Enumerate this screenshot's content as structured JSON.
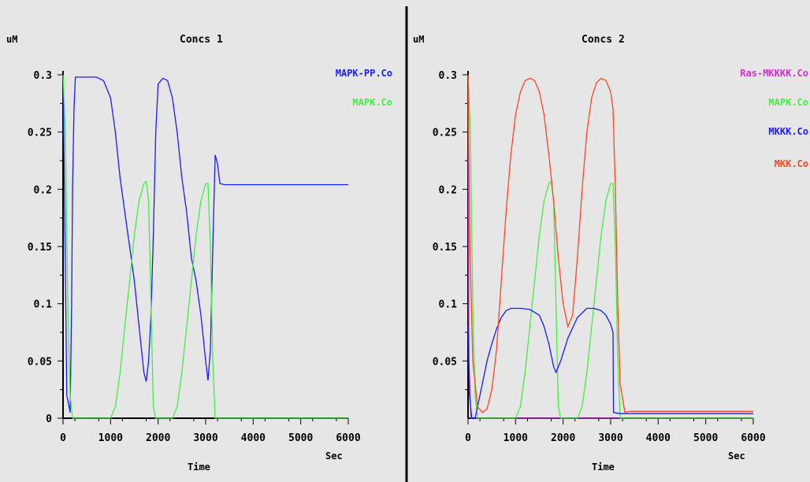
{
  "window": {
    "background": "#e6e6e6"
  },
  "chart_data": [
    {
      "type": "line",
      "title": "Concs 1",
      "ylabel": "uM",
      "xlabel": "Time",
      "xunit": "Sec",
      "xlim": [
        0,
        6000
      ],
      "ylim": [
        0,
        0.3
      ],
      "xticks": [
        "0",
        "1000",
        "2000",
        "3000",
        "4000",
        "5000",
        "6000"
      ],
      "yticks": [
        "0",
        "0.05",
        "0.1",
        "0.15",
        "0.2",
        "0.25",
        "0.3"
      ],
      "legend_placement": "top-right",
      "series": [
        {
          "name": "MAPK-PP.Co",
          "color": "#1a1aff",
          "points": [
            [
              0,
              0.3
            ],
            [
              30,
              0.2
            ],
            [
              80,
              0.02
            ],
            [
              150,
              0.005
            ],
            [
              180,
              0.1
            ],
            [
              200,
              0.2
            ],
            [
              230,
              0.27
            ],
            [
              260,
              0.298
            ],
            [
              400,
              0.298
            ],
            [
              700,
              0.298
            ],
            [
              850,
              0.295
            ],
            [
              1000,
              0.28
            ],
            [
              1100,
              0.25
            ],
            [
              1200,
              0.21
            ],
            [
              1300,
              0.18
            ],
            [
              1400,
              0.15
            ],
            [
              1500,
              0.12
            ],
            [
              1600,
              0.08
            ],
            [
              1700,
              0.04
            ],
            [
              1750,
              0.032
            ],
            [
              1800,
              0.05
            ],
            [
              1850,
              0.09
            ],
            [
              1900,
              0.16
            ],
            [
              1950,
              0.25
            ],
            [
              2000,
              0.292
            ],
            [
              2100,
              0.297
            ],
            [
              2200,
              0.295
            ],
            [
              2300,
              0.28
            ],
            [
              2400,
              0.25
            ],
            [
              2500,
              0.21
            ],
            [
              2600,
              0.18
            ],
            [
              2700,
              0.14
            ],
            [
              2800,
              0.12
            ],
            [
              2900,
              0.09
            ],
            [
              3000,
              0.05
            ],
            [
              3050,
              0.033
            ],
            [
              3100,
              0.06
            ],
            [
              3150,
              0.15
            ],
            [
              3200,
              0.23
            ],
            [
              3250,
              0.222
            ],
            [
              3300,
              0.205
            ],
            [
              3400,
              0.204
            ],
            [
              6000,
              0.204
            ]
          ]
        },
        {
          "name": "MAPK.Co",
          "color": "#44ee44",
          "points": [
            [
              0,
              0.3
            ],
            [
              50,
              0.25
            ],
            [
              100,
              0.1
            ],
            [
              150,
              0.02
            ],
            [
              200,
              0.0
            ],
            [
              1000,
              0.0
            ],
            [
              1100,
              0.01
            ],
            [
              1200,
              0.04
            ],
            [
              1300,
              0.08
            ],
            [
              1400,
              0.12
            ],
            [
              1500,
              0.16
            ],
            [
              1600,
              0.19
            ],
            [
              1700,
              0.205
            ],
            [
              1750,
              0.207
            ],
            [
              1800,
              0.19
            ],
            [
              1850,
              0.1
            ],
            [
              1900,
              0.01
            ],
            [
              1950,
              0.0
            ],
            [
              2300,
              0.0
            ],
            [
              2400,
              0.01
            ],
            [
              2500,
              0.04
            ],
            [
              2600,
              0.08
            ],
            [
              2700,
              0.12
            ],
            [
              2800,
              0.16
            ],
            [
              2900,
              0.19
            ],
            [
              3000,
              0.205
            ],
            [
              3050,
              0.205
            ],
            [
              3100,
              0.15
            ],
            [
              3150,
              0.05
            ],
            [
              3200,
              0.0
            ],
            [
              6000,
              0.0
            ]
          ]
        }
      ]
    },
    {
      "type": "line",
      "title": "Concs 2",
      "ylabel": "uM",
      "xlabel": "Time",
      "xunit": "Sec",
      "xlim": [
        0,
        6000
      ],
      "ylim": [
        0,
        0.3
      ],
      "xticks": [
        "0",
        "1000",
        "2000",
        "3000",
        "4000",
        "5000",
        "6000"
      ],
      "yticks": [
        "0.05",
        "0.1",
        "0.15",
        "0.2",
        "0.25",
        "0.3"
      ],
      "legend_placement": "top-right",
      "series": [
        {
          "name": "Ras-MKKKK.Co",
          "color": "#cc33cc",
          "points": [
            [
              0,
              0.3
            ],
            [
              20,
              0.05
            ],
            [
              60,
              0.0
            ],
            [
              6000,
              0.0
            ]
          ]
        },
        {
          "name": "MAPK.Co",
          "color": "#44ee44",
          "points": [
            [
              0,
              0.3
            ],
            [
              50,
              0.25
            ],
            [
              100,
              0.1
            ],
            [
              150,
              0.02
            ],
            [
              200,
              0.0
            ],
            [
              1000,
              0.0
            ],
            [
              1100,
              0.01
            ],
            [
              1200,
              0.04
            ],
            [
              1300,
              0.08
            ],
            [
              1400,
              0.12
            ],
            [
              1500,
              0.16
            ],
            [
              1600,
              0.19
            ],
            [
              1700,
              0.205
            ],
            [
              1750,
              0.207
            ],
            [
              1800,
              0.19
            ],
            [
              1850,
              0.1
            ],
            [
              1900,
              0.01
            ],
            [
              1950,
              0.0
            ],
            [
              2300,
              0.0
            ],
            [
              2400,
              0.01
            ],
            [
              2500,
              0.04
            ],
            [
              2600,
              0.08
            ],
            [
              2700,
              0.12
            ],
            [
              2800,
              0.16
            ],
            [
              2900,
              0.19
            ],
            [
              3000,
              0.205
            ],
            [
              3050,
              0.205
            ],
            [
              3100,
              0.15
            ],
            [
              3150,
              0.05
            ],
            [
              3200,
              0.0
            ],
            [
              6000,
              0.0
            ]
          ]
        },
        {
          "name": "MKKK.Co",
          "color": "#1a1aff",
          "points": [
            [
              0,
              0.08
            ],
            [
              30,
              0.02
            ],
            [
              80,
              0.0
            ],
            [
              150,
              0.0
            ],
            [
              200,
              0.01
            ],
            [
              300,
              0.03
            ],
            [
              400,
              0.05
            ],
            [
              500,
              0.065
            ],
            [
              600,
              0.078
            ],
            [
              700,
              0.088
            ],
            [
              800,
              0.094
            ],
            [
              900,
              0.096
            ],
            [
              1100,
              0.096
            ],
            [
              1300,
              0.095
            ],
            [
              1500,
              0.09
            ],
            [
              1600,
              0.08
            ],
            [
              1700,
              0.065
            ],
            [
              1800,
              0.045
            ],
            [
              1850,
              0.04
            ],
            [
              1950,
              0.05
            ],
            [
              2100,
              0.07
            ],
            [
              2300,
              0.088
            ],
            [
              2500,
              0.096
            ],
            [
              2650,
              0.096
            ],
            [
              2800,
              0.094
            ],
            [
              2900,
              0.09
            ],
            [
              3000,
              0.082
            ],
            [
              3050,
              0.075
            ],
            [
              3060,
              0.005
            ],
            [
              3200,
              0.004
            ],
            [
              6000,
              0.004
            ]
          ]
        },
        {
          "name": "MKK.Co",
          "color": "#ff4422",
          "points": [
            [
              0,
              0.3
            ],
            [
              40,
              0.15
            ],
            [
              100,
              0.05
            ],
            [
              200,
              0.01
            ],
            [
              300,
              0.005
            ],
            [
              400,
              0.008
            ],
            [
              500,
              0.025
            ],
            [
              600,
              0.06
            ],
            [
              700,
              0.12
            ],
            [
              800,
              0.18
            ],
            [
              900,
              0.23
            ],
            [
              1000,
              0.265
            ],
            [
              1100,
              0.285
            ],
            [
              1200,
              0.295
            ],
            [
              1300,
              0.297
            ],
            [
              1400,
              0.295
            ],
            [
              1500,
              0.285
            ],
            [
              1600,
              0.265
            ],
            [
              1700,
              0.23
            ],
            [
              1800,
              0.19
            ],
            [
              1900,
              0.14
            ],
            [
              2000,
              0.1
            ],
            [
              2100,
              0.08
            ],
            [
              2200,
              0.09
            ],
            [
              2300,
              0.14
            ],
            [
              2400,
              0.2
            ],
            [
              2500,
              0.25
            ],
            [
              2600,
              0.28
            ],
            [
              2700,
              0.293
            ],
            [
              2800,
              0.297
            ],
            [
              2900,
              0.295
            ],
            [
              3000,
              0.285
            ],
            [
              3050,
              0.27
            ],
            [
              3100,
              0.2
            ],
            [
              3150,
              0.1
            ],
            [
              3200,
              0.03
            ],
            [
              3300,
              0.005
            ],
            [
              3400,
              0.006
            ],
            [
              6000,
              0.006
            ]
          ]
        }
      ]
    }
  ]
}
